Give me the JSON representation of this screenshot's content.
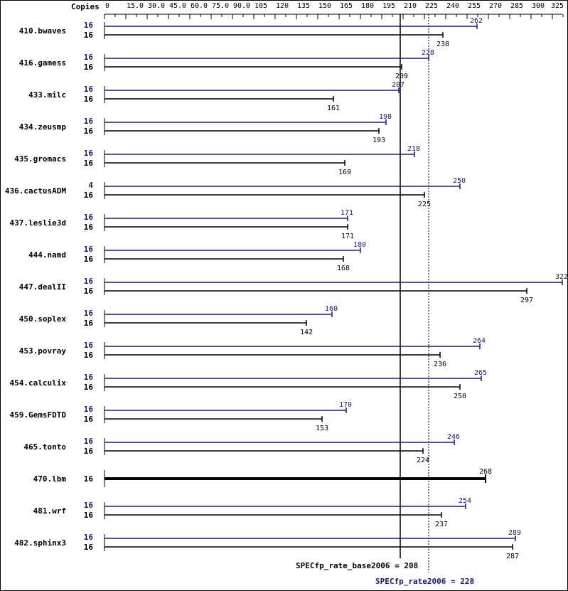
{
  "chart_data": {
    "type": "bar",
    "orientation": "horizontal",
    "copies_header": "Copies",
    "x_ticks": [
      "0",
      "15.0",
      "30.0",
      "45.0",
      "60.0",
      "75.0",
      "90.0",
      "105",
      "120",
      "135",
      "150",
      "165",
      "180",
      "195",
      "210",
      "225",
      "240",
      "255",
      "270",
      "285",
      "300",
      "325"
    ],
    "xlim": [
      0,
      325
    ],
    "categories": [
      "410.bwaves",
      "416.gamess",
      "433.milc",
      "434.zeusmp",
      "435.gromacs",
      "436.cactusADM",
      "437.leslie3d",
      "444.namd",
      "447.dealII",
      "450.soplex",
      "453.povray",
      "454.calculix",
      "459.GemsFDTD",
      "465.tonto",
      "470.lbm",
      "481.wrf",
      "482.sphinx3"
    ],
    "series": [
      {
        "name": "SPECfp_rate2006",
        "color": "#191970",
        "copies": [
          "16",
          "16",
          "16",
          "16",
          "16",
          "4",
          "16",
          "16",
          "16",
          "16",
          "16",
          "16",
          "16",
          "16",
          null,
          "16",
          "16"
        ],
        "values": [
          262,
          228,
          207,
          198,
          218,
          250,
          171,
          180,
          322,
          160,
          264,
          265,
          170,
          246,
          null,
          254,
          289
        ]
      },
      {
        "name": "SPECfp_rate_base2006",
        "color": "#000000",
        "copies": [
          "16",
          "16",
          "16",
          "16",
          "16",
          "16",
          "16",
          "16",
          "16",
          "16",
          "16",
          "16",
          "16",
          "16",
          "16",
          "16",
          "16"
        ],
        "values": [
          238,
          209,
          161,
          193,
          169,
          225,
          171,
          168,
          297,
          142,
          236,
          250,
          153,
          224,
          268,
          237,
          287
        ]
      }
    ],
    "reference_lines": [
      {
        "label": "SPECfp_rate_base2006 = 208",
        "value": 208,
        "style": "solid",
        "color": "#000000"
      },
      {
        "label": "SPECfp_rate2006 = 228",
        "value": 228,
        "style": "dotted",
        "color": "#191970"
      }
    ],
    "grid": false,
    "legend": "none"
  }
}
